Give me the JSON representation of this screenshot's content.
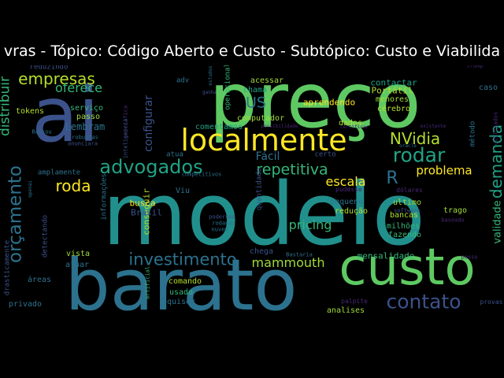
{
  "title": "vras - Tópico: Código Aberto e Custo - Subtópico: Custo e Viabilida",
  "words": [
    {
      "t": "modelo",
      "c": "#21908d"
    },
    {
      "t": "preço",
      "c": "#5ec962"
    },
    {
      "t": "ai",
      "c": "#3b528b"
    },
    {
      "t": "barato",
      "c": "#2c728e"
    },
    {
      "t": "custo",
      "c": "#5ec962"
    },
    {
      "t": "localmente",
      "c": "#fde725"
    },
    {
      "t": "advogados",
      "c": "#20a386"
    },
    {
      "t": "investimento",
      "c": "#2c728e"
    },
    {
      "t": "contato",
      "c": "#3b528b"
    },
    {
      "t": "orçamento",
      "c": "#2c728e"
    },
    {
      "t": "rodar",
      "c": "#20a386"
    },
    {
      "t": "empresas",
      "c": "#b5de2b"
    },
    {
      "t": "NVidia",
      "c": "#b5de2b"
    },
    {
      "t": "repetitiva",
      "c": "#35b779"
    },
    {
      "t": "roda",
      "c": "#fde725"
    },
    {
      "t": "demanda",
      "c": "#20a386"
    },
    {
      "t": "mammouth",
      "c": "#a0da39"
    },
    {
      "t": "problema",
      "c": "#fde725"
    },
    {
      "t": "escala",
      "c": "#fde725"
    },
    {
      "t": "pricing",
      "c": "#35b779"
    },
    {
      "t": "US",
      "c": "#2c728e"
    },
    {
      "t": "R",
      "c": "#2c728e"
    },
    {
      "t": "oferece",
      "c": "#35b779"
    },
    {
      "t": "configurar",
      "c": "#3b528b"
    },
    {
      "t": "distribuir",
      "c": "#35b779"
    },
    {
      "t": "validade",
      "c": "#35b779"
    },
    {
      "t": "Fácil",
      "c": "#2c728e"
    },
    {
      "t": "Lembram",
      "c": "#2c728e"
    },
    {
      "t": "conseguir",
      "c": "#b5de2b"
    },
    {
      "t": "aprendendo",
      "c": "#fde725"
    },
    {
      "t": "Portátil",
      "c": "#b5de2b"
    },
    {
      "t": "mensalidade",
      "c": "#35b779"
    },
    {
      "t": "contactar",
      "c": "#20a386"
    },
    {
      "t": "comentamos",
      "c": "#20a386"
    },
    {
      "t": "computador",
      "c": "#a0da39"
    },
    {
      "t": "acessar",
      "c": "#a0da39"
    },
    {
      "t": "menores",
      "c": "#a0da39"
    },
    {
      "t": "cérebro",
      "c": "#b5de2b"
    },
    {
      "t": "dados",
      "c": "#b5de2b"
    },
    {
      "t": "busca",
      "c": "#fde725"
    },
    {
      "t": "Brasil",
      "c": "#3b528b"
    },
    {
      "t": "redução",
      "c": "#b5de2b"
    },
    {
      "t": "pequeno",
      "c": "#2c728e"
    },
    {
      "t": "ultimo",
      "c": "#a0da39"
    },
    {
      "t": "milhões",
      "c": "#35b779"
    },
    {
      "t": "fazendo",
      "c": "#35b779"
    },
    {
      "t": "bancas",
      "c": "#b5de2b"
    },
    {
      "t": "trago",
      "c": "#a0da39"
    },
    {
      "t": "tokens",
      "c": "#b5de2b"
    },
    {
      "t": "serviço",
      "c": "#35b779"
    },
    {
      "t": "passo",
      "c": "#a0da39"
    },
    {
      "t": "comando",
      "c": "#b5de2b"
    },
    {
      "t": "usado",
      "c": "#35b779"
    },
    {
      "t": "quiser",
      "c": "#2c728e"
    },
    {
      "t": "analises",
      "c": "#a0da39"
    },
    {
      "t": "áreas",
      "c": "#2c728e"
    },
    {
      "t": "privado",
      "c": "#2c728e"
    },
    {
      "t": "vista",
      "c": "#a0da39"
    },
    {
      "t": "atuar",
      "c": "#2c728e"
    },
    {
      "t": "chega",
      "c": "#3b528b"
    },
    {
      "t": "caso",
      "c": "#2c728e"
    },
    {
      "t": "método",
      "c": "#2c728e"
    },
    {
      "t": "chama",
      "c": "#20a386"
    },
    {
      "t": "adv",
      "c": "#2c728e"
    },
    {
      "t": "certo",
      "c": "#3b528b"
    },
    {
      "t": "amplamente",
      "c": "#2c728e"
    },
    {
      "t": "reduzindo",
      "c": "#3b528b"
    },
    {
      "t": "Viu",
      "c": "#2c728e"
    },
    {
      "t": "atua",
      "c": "#2c728e"
    },
    {
      "t": "quantidade",
      "c": "#3b528b"
    },
    {
      "t": "dólares",
      "c": "#482878"
    },
    {
      "t": "palpite",
      "c": "#482878"
    },
    {
      "t": "provas",
      "c": "#3b528b"
    },
    {
      "t": "informações",
      "c": "#2c728e"
    },
    {
      "t": "detectando",
      "c": "#3b528b"
    },
    {
      "t": "drasticamente",
      "c": "#3b528b"
    },
    {
      "t": "operacional",
      "c": "#35b779"
    },
    {
      "t": "específica",
      "c": "#482878"
    },
    {
      "t": "inteligencia",
      "c": "#3b528b"
    },
    {
      "t": "artificial",
      "c": "#35b779"
    },
    {
      "t": "Baixou",
      "c": "#2c728e"
    },
    {
      "t": "robustas",
      "c": "#2c728e"
    },
    {
      "t": "anunciara",
      "c": "#3b528b"
    },
    {
      "t": "competitivos",
      "c": "#2c728e"
    },
    {
      "t": "poderoso",
      "c": "#3b528b"
    },
    {
      "t": "rodando",
      "c": "#2c728e"
    },
    {
      "t": "nuvem",
      "c": "#2c728e"
    },
    {
      "t": "Bastaria",
      "c": "#2c728e"
    },
    {
      "t": "pudesse",
      "c": "#482878"
    },
    {
      "t": "software",
      "c": "#3b528b"
    },
    {
      "t": "baseado",
      "c": "#482878"
    },
    {
      "t": "possibilidade",
      "c": "#482878"
    },
    {
      "t": "existente",
      "c": "#482878"
    },
    {
      "t": "oracle",
      "c": "#2c728e"
    },
    {
      "t": "utilizados",
      "c": "#482878"
    },
    {
      "t": "openai",
      "c": "#2c728e"
    },
    {
      "t": "trump",
      "c": "#482878"
    },
    {
      "t": "certificar",
      "c": "#482878"
    },
    {
      "t": "estudos",
      "c": "#2c728e"
    },
    {
      "t": "ganha",
      "c": "#3b528b"
    },
    {
      "t": "pesso",
      "c": "#482878"
    }
  ]
}
